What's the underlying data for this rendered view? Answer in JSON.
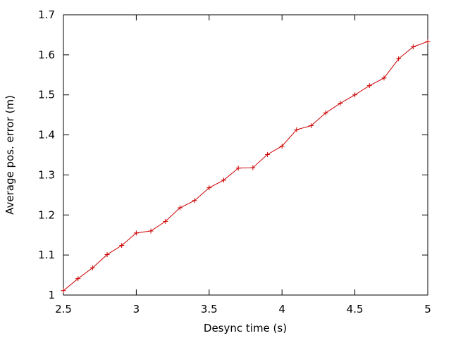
{
  "chart_data": {
    "type": "line",
    "title": "",
    "xlabel": "Desync time (s)",
    "ylabel": "Average pos. error (m)",
    "xlim": [
      2.5,
      5
    ],
    "ylim": [
      1,
      1.7
    ],
    "xticks": [
      "2.5",
      "3",
      "3.5",
      "4",
      "4.5",
      "5"
    ],
    "yticks": [
      "1",
      "1.1",
      "1.2",
      "1.3",
      "1.4",
      "1.5",
      "1.6",
      "1.7"
    ],
    "grid": false,
    "legend": "none",
    "series": [
      {
        "color": "#cc0000",
        "marker": "plus",
        "x": [
          2.5,
          2.6,
          2.7,
          2.8,
          2.9,
          3.0,
          3.1,
          3.2,
          3.3,
          3.4,
          3.5,
          3.6,
          3.7,
          3.8,
          3.9,
          4.0,
          4.1,
          4.2,
          4.3,
          4.4,
          4.5,
          4.6,
          4.7,
          4.8,
          4.9,
          5.0
        ],
        "y": [
          1.011,
          1.041,
          1.068,
          1.101,
          1.124,
          1.155,
          1.16,
          1.184,
          1.218,
          1.236,
          1.268,
          1.287,
          1.317,
          1.318,
          1.351,
          1.372,
          1.413,
          1.423,
          1.455,
          1.479,
          1.5,
          1.523,
          1.542,
          1.59,
          1.62,
          1.633
        ]
      }
    ]
  }
}
